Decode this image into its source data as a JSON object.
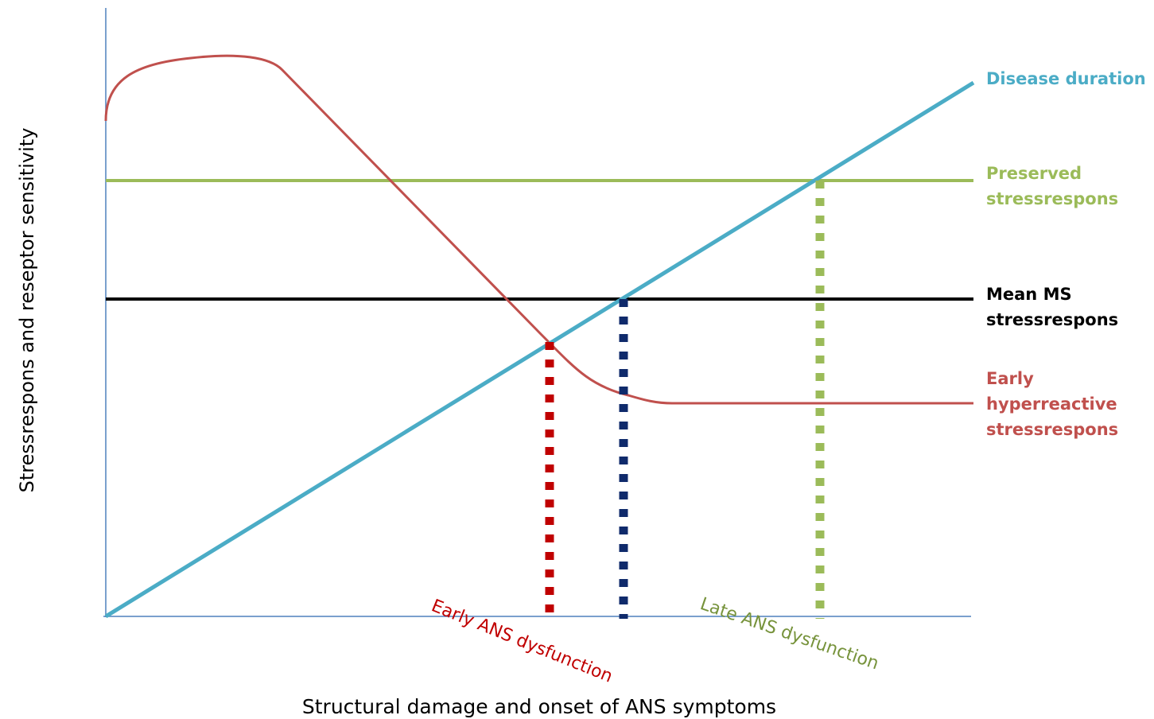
{
  "axes": {
    "y_label": "Stressrespons and reseptor sensitivity",
    "x_label": "Structural damage and onset of ANS symptoms"
  },
  "curves": [
    {
      "label": [
        "Disease duration"
      ]
    },
    {
      "label": [
        "Preserved",
        "stressrespons"
      ]
    },
    {
      "label": [
        "Mean MS",
        "stressrespons"
      ]
    },
    {
      "label": [
        "Early",
        "hyperreactive",
        "stressrespons"
      ]
    }
  ],
  "markers": [
    {
      "label": "Early ANS dysfunction"
    },
    {
      "label": "Late ANS dysfunction"
    }
  ]
}
